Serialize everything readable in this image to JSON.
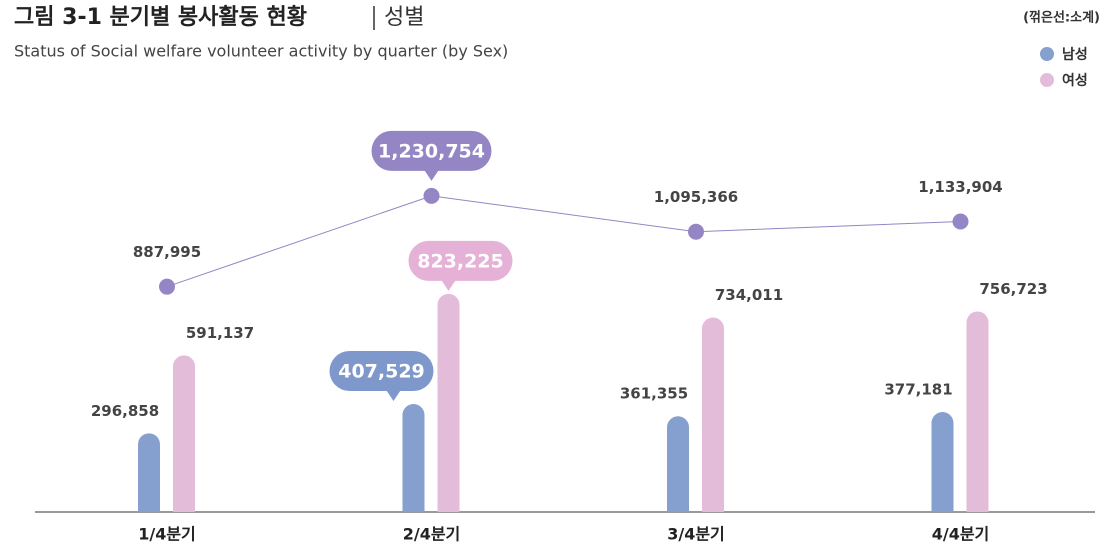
{
  "chart_data": {
    "type": "bar-line",
    "title": "그림 3-1 분기별 봉사활동 현황",
    "title_tag": "성별",
    "subtitle": "Status of Social welfare volunteer activity by quarter (by Sex)",
    "note": "(꺾은선:소계)",
    "categories": [
      "1/4분기",
      "2/4분기",
      "3/4분기",
      "4/4분기"
    ],
    "series": [
      {
        "name": "남성",
        "color": "#859fcf",
        "values": [
          296858,
          407529,
          361355,
          377181
        ],
        "value_labels": [
          "296,858",
          "407,529",
          "361,355",
          "377,181"
        ]
      },
      {
        "name": "여성",
        "color": "#e3bcd9",
        "values": [
          591137,
          823225,
          734011,
          756723
        ],
        "value_labels": [
          "591,137",
          "823,225",
          "734,011",
          "756,723"
        ]
      }
    ],
    "line": {
      "color": "#9486c4",
      "values": [
        887995,
        1230754,
        1095366,
        1133904
      ],
      "value_labels": [
        "887,995",
        "1,230,754",
        "1,095,366",
        "1,133,904"
      ]
    },
    "legend": "top-right"
  }
}
